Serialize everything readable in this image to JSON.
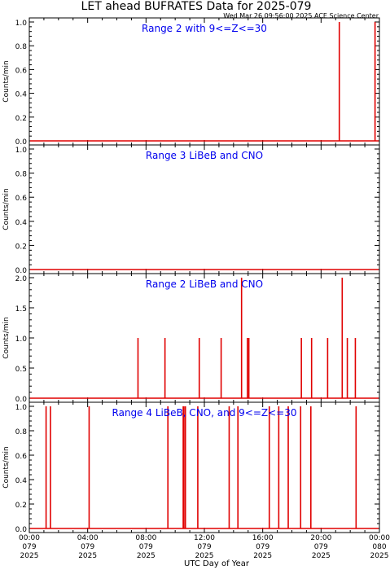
{
  "title": "LET ahead BUFRATES Data for 2025-079",
  "timestamp": "Wed Mar 26 09:56:00 2025 ACE Science Center",
  "xlabel": "UTC Day of Year",
  "colors": {
    "data": "#e00000",
    "label": "#0000ee",
    "axis": "#000000"
  },
  "chart_data": [
    {
      "type": "line",
      "label": "Range 2 with 9<=Z<=30",
      "ylabel": "Counts/min",
      "ylim": [
        0,
        1.0
      ],
      "yticks": [
        "0.0",
        "0.2",
        "0.4",
        "0.6",
        "0.8",
        "1.0"
      ],
      "spikes": [
        {
          "hour": 21.25,
          "value": 1.0
        },
        {
          "hour": 23.7,
          "value": 1.0
        }
      ]
    },
    {
      "type": "line",
      "label": "Range 3 LiBeB and CNO",
      "ylabel": "Counts/min",
      "ylim": [
        0,
        1.0
      ],
      "yticks": [
        "0.0",
        "0.2",
        "0.4",
        "0.6",
        "0.8",
        "1.0"
      ],
      "spikes": []
    },
    {
      "type": "line",
      "label": "Range 2 LiBeB and CNO",
      "ylabel": "Counts/min",
      "ylim": [
        0,
        2.0
      ],
      "yticks": [
        "0.0",
        "0.5",
        "1.0",
        "1.5",
        "2.0"
      ],
      "spikes": [
        {
          "hour": 7.45,
          "value": 1
        },
        {
          "hour": 9.3,
          "value": 1
        },
        {
          "hour": 11.65,
          "value": 1
        },
        {
          "hour": 13.15,
          "value": 1
        },
        {
          "hour": 14.55,
          "value": 2
        },
        {
          "hour": 14.95,
          "value": 1
        },
        {
          "hour": 15.05,
          "value": 1
        },
        {
          "hour": 18.65,
          "value": 1
        },
        {
          "hour": 19.35,
          "value": 1
        },
        {
          "hour": 20.45,
          "value": 1
        },
        {
          "hour": 21.45,
          "value": 2
        },
        {
          "hour": 21.8,
          "value": 1
        },
        {
          "hour": 22.35,
          "value": 1
        }
      ]
    },
    {
      "type": "line",
      "label": "Range 4 LiBeB, CNO, and 9<=Z<=30",
      "ylabel": "Counts/min",
      "ylim": [
        0,
        1.0
      ],
      "yticks": [
        "0.0",
        "0.2",
        "0.4",
        "0.6",
        "0.8",
        "1.0"
      ],
      "spikes": [
        {
          "hour": 1.15,
          "value": 1
        },
        {
          "hour": 1.45,
          "value": 1
        },
        {
          "hour": 4.1,
          "value": 1
        },
        {
          "hour": 9.5,
          "value": 1
        },
        {
          "hour": 10.55,
          "value": 1
        },
        {
          "hour": 10.6,
          "value": 1
        },
        {
          "hour": 10.7,
          "value": 1
        },
        {
          "hour": 11.55,
          "value": 1
        },
        {
          "hour": 13.7,
          "value": 1
        },
        {
          "hour": 14.3,
          "value": 1
        },
        {
          "hour": 16.45,
          "value": 1
        },
        {
          "hour": 17.1,
          "value": 1
        },
        {
          "hour": 17.75,
          "value": 1
        },
        {
          "hour": 18.6,
          "value": 1
        },
        {
          "hour": 19.3,
          "value": 1
        },
        {
          "hour": 22.4,
          "value": 1
        }
      ]
    }
  ],
  "xaxis": {
    "range_hours": [
      0,
      24
    ],
    "tick_hours": [
      0,
      4,
      8,
      12,
      16,
      20,
      24
    ],
    "ticks": [
      {
        "time": "00:00",
        "doy": "079",
        "year": "2025"
      },
      {
        "time": "04:00",
        "doy": "079",
        "year": "2025"
      },
      {
        "time": "08:00",
        "doy": "079",
        "year": "2025"
      },
      {
        "time": "12:00",
        "doy": "079",
        "year": "2025"
      },
      {
        "time": "16:00",
        "doy": "079",
        "year": "2025"
      },
      {
        "time": "20:00",
        "doy": "079",
        "year": "2025"
      },
      {
        "time": "00:00",
        "doy": "080",
        "year": "2025"
      }
    ]
  }
}
